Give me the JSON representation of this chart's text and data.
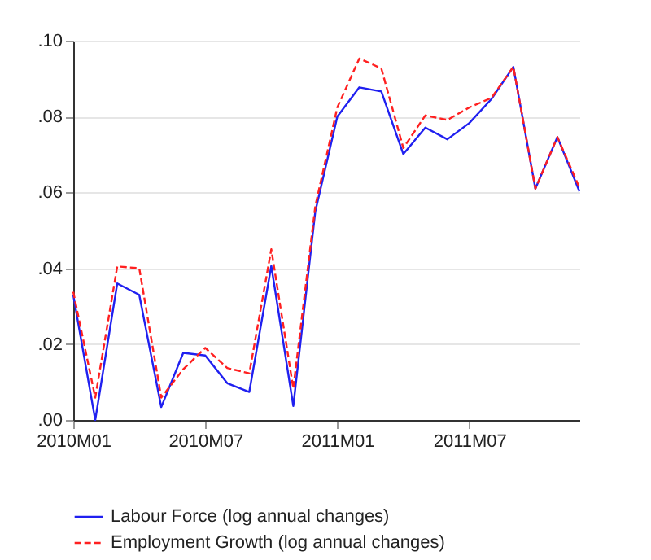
{
  "chart_data": {
    "type": "line",
    "categories": [
      "2010M01",
      null,
      null,
      null,
      null,
      null,
      "2010M07",
      null,
      null,
      null,
      null,
      null,
      "2011M01",
      null,
      null,
      null,
      null,
      null,
      "2011M07",
      null,
      null,
      null,
      null,
      null
    ],
    "ylim": [
      0,
      0.1
    ],
    "yticks": [
      {
        "value": 0,
        "label": ".00"
      },
      {
        "value": 0.02,
        "label": ".02"
      },
      {
        "value": 0.04,
        "label": ".04"
      },
      {
        "value": 0.06,
        "label": ".06"
      },
      {
        "value": 0.08,
        "label": ".08"
      },
      {
        "value": 0.1,
        "label": ".10"
      }
    ],
    "grid": "y",
    "legend": "bottom",
    "series": [
      {
        "name": "Labour Force (log annual changes)",
        "color": "#2020f0",
        "line_style": "solid",
        "values": [
          0.033,
          0.0,
          0.036,
          0.033,
          0.0034,
          0.0177,
          0.017,
          0.0097,
          0.0074,
          0.0406,
          0.0037,
          0.055,
          0.08,
          0.0877,
          0.0866,
          0.0701,
          0.0771,
          0.074,
          0.0783,
          0.0846,
          0.0931,
          0.061,
          0.0746,
          0.0603
        ]
      },
      {
        "name": "Employment Growth (log annual changes)",
        "color": "#ff2020",
        "line_style": "dashed",
        "values": [
          0.0338,
          0.0059,
          0.0405,
          0.04,
          0.0059,
          0.0134,
          0.019,
          0.0137,
          0.0123,
          0.045,
          0.0083,
          0.0564,
          0.0824,
          0.0953,
          0.0927,
          0.0717,
          0.0803,
          0.0791,
          0.0824,
          0.0849,
          0.0931,
          0.061,
          0.0746,
          0.0613
        ]
      }
    ]
  }
}
